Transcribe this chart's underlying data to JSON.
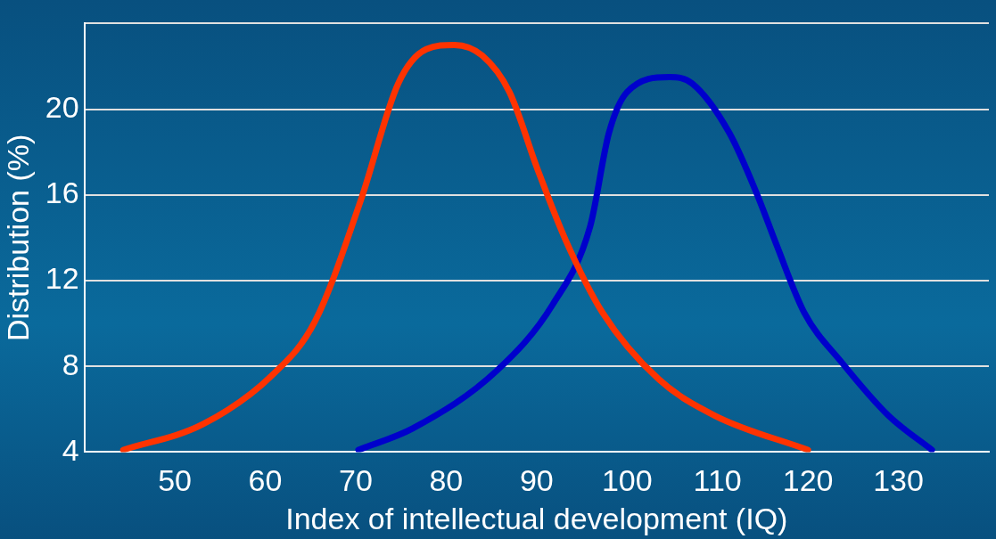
{
  "chart_data": {
    "type": "line",
    "xlabel": "Index of intellectual development (IQ)",
    "ylabel": "Distribution (%)",
    "xlim": [
      40,
      140
    ],
    "xticks": [
      50,
      60,
      70,
      80,
      90,
      100,
      110,
      120,
      130
    ],
    "ylim": [
      4,
      24
    ],
    "yticks": [
      4,
      8,
      12,
      16,
      20,
      {
        "value": 24,
        "label": null
      }
    ],
    "grid": "y",
    "marker": "none",
    "line_style": "solid",
    "series": [
      {
        "color": "#ff3300",
        "x": [
          44.3,
          53.1,
          60.8,
          65.5,
          70.6,
          74.7,
          77.8,
          80.9,
          84,
          87,
          90.1,
          93.2,
          97.3,
          103.5,
          109.7,
          120
        ],
        "values": [
          4.1,
          5.3,
          7.6,
          10.1,
          15.8,
          21.2,
          22.8,
          23.0,
          22.5,
          20.8,
          17.2,
          13.9,
          10.5,
          7.4,
          5.7,
          4.1
        ]
      },
      {
        "color": "#0000cc",
        "x": [
          70.3,
          76.3,
          85.6,
          91.8,
          95.9,
          98,
          100,
          104.7,
          107.2,
          111.3,
          114.4,
          116.5,
          119.6,
          123.7,
          128.9,
          133.7
        ],
        "values": [
          4.1,
          5.1,
          7.8,
          10.9,
          14.5,
          18.9,
          20.8,
          21.5,
          21.2,
          18.9,
          16.0,
          13.7,
          10.5,
          8.2,
          5.7,
          4.1
        ]
      }
    ]
  }
}
